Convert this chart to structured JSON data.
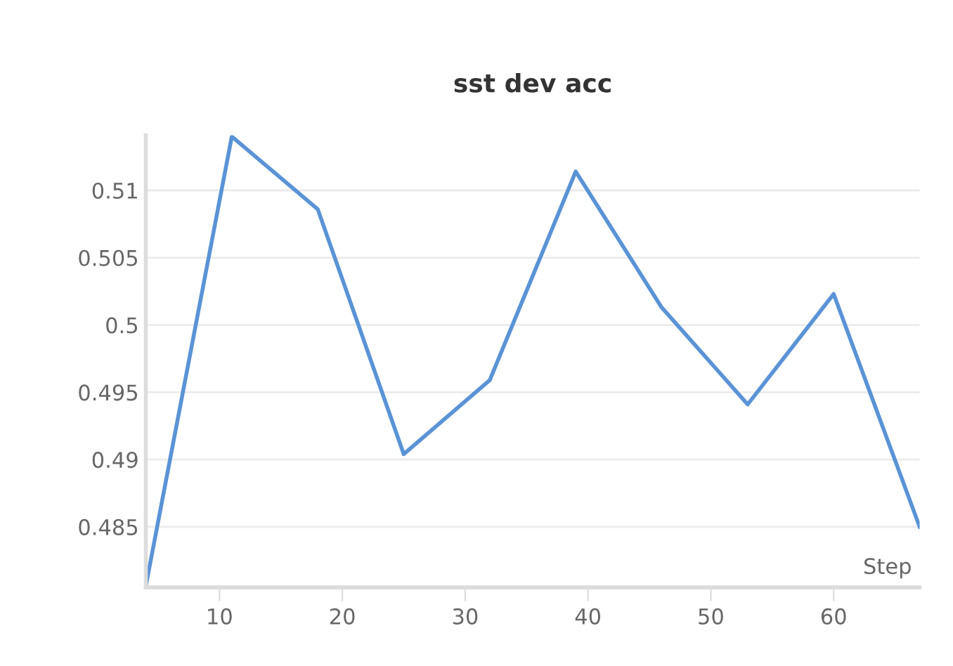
{
  "chart_data": {
    "type": "line",
    "title": "sst dev acc",
    "xlabel": "Step",
    "x": [
      4,
      11,
      18,
      25,
      32,
      39,
      46,
      53,
      60,
      67
    ],
    "series": [
      {
        "color": "#5a93d6",
        "values": [
          0.4806,
          0.514,
          0.5086,
          0.4904,
          0.4959,
          0.5114,
          0.5013,
          0.4941,
          0.5023,
          0.485
        ]
      }
    ],
    "xlim": [
      4,
      67
    ],
    "xticks": [
      10,
      20,
      30,
      40,
      50,
      60
    ],
    "ylim": [
      0.4805,
      0.5141
    ],
    "yticks": [
      0.485,
      0.49,
      0.495,
      0.5,
      0.505,
      0.51
    ],
    "grid": "y",
    "line_style": "solid"
  }
}
